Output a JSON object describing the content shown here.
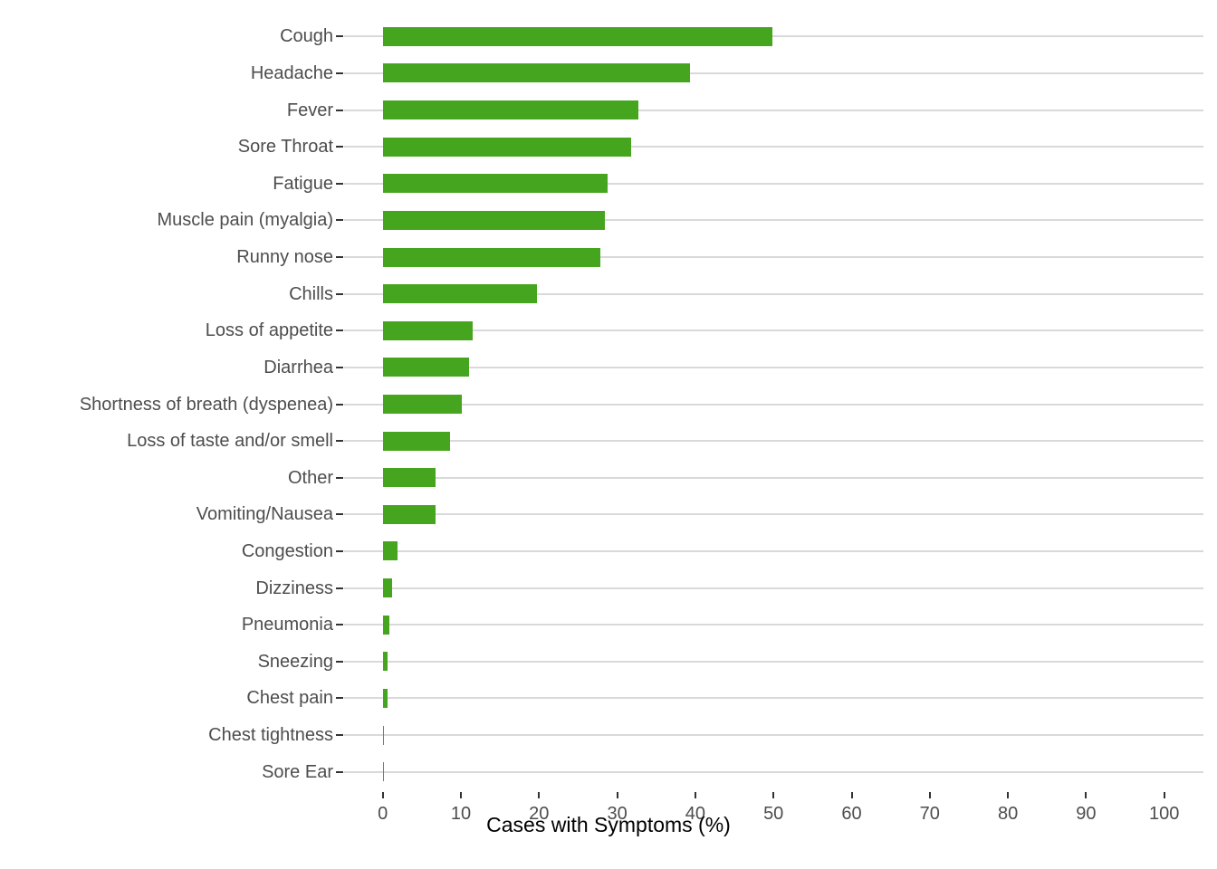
{
  "chart_data": {
    "type": "bar",
    "orientation": "horizontal",
    "title": "",
    "xlabel": "Cases with Symptoms (%)",
    "ylabel": "",
    "categories": [
      "Cough",
      "Headache",
      "Fever",
      "Sore Throat",
      "Fatigue",
      "Muscle pain (myalgia)",
      "Runny nose",
      "Chills",
      "Loss of appetite",
      "Diarrhea",
      "Shortness of breath (dyspenea)",
      "Loss of taste and/or smell",
      "Other",
      "Vomiting/Nausea",
      "Congestion",
      "Dizziness",
      "Pneumonia",
      "Sneezing",
      "Chest pain",
      "Chest tightness",
      "Sore Ear"
    ],
    "values": [
      49.9,
      39.3,
      32.7,
      31.8,
      28.8,
      28.4,
      27.9,
      19.7,
      11.5,
      11.0,
      10.1,
      8.6,
      6.8,
      6.7,
      1.9,
      1.2,
      0.9,
      0.6,
      0.6,
      0.2,
      0.2
    ],
    "xlim": [
      0,
      100
    ],
    "xticks": [
      0,
      10,
      20,
      30,
      40,
      50,
      60,
      70,
      80,
      90,
      100
    ],
    "grid": "horizontal-major-only",
    "legend": "none",
    "colors": {
      "bar": "#46A51E",
      "gridline": "#D9D9D9",
      "tick": "#333333",
      "axis_text": "#4D4D4D",
      "axis_title": "#000000",
      "background": "#FFFFFF"
    }
  }
}
